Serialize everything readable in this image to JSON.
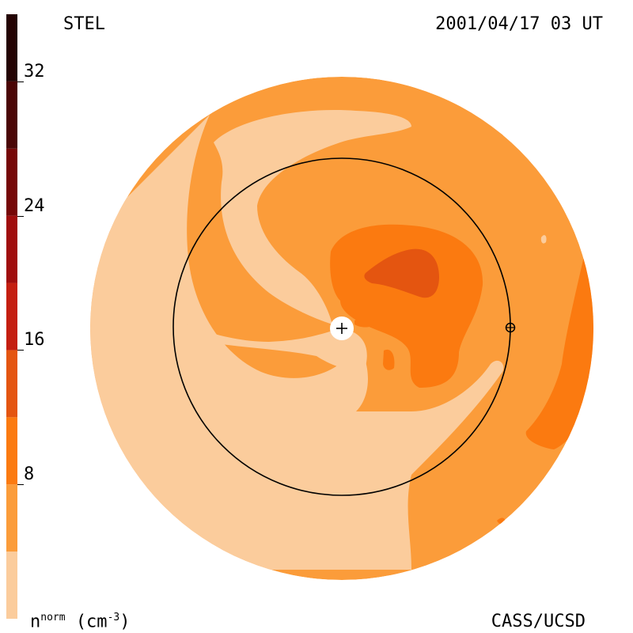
{
  "header": {
    "left_label": "STEL",
    "right_label": "2001/04/17 03 UT",
    "credit": "CASS/UCSD"
  },
  "colorbar": {
    "unit_base": "n",
    "unit_sup": "norm",
    "unit_rest": "(cm",
    "unit_exp": "-3",
    "unit_close": ")",
    "min": 0,
    "max": 36,
    "ticks": [
      "8",
      "16",
      "24",
      "32"
    ],
    "tick_values": [
      8,
      16,
      24,
      32
    ],
    "levels": [
      {
        "from": 0,
        "to": 4,
        "color": "#fbcc9c"
      },
      {
        "from": 4,
        "to": 8,
        "color": "#fb9c3a"
      },
      {
        "from": 8,
        "to": 12,
        "color": "#fb7a10"
      },
      {
        "from": 12,
        "to": 16,
        "color": "#e45510"
      },
      {
        "from": 16,
        "to": 20,
        "color": "#c41e10"
      },
      {
        "from": 20,
        "to": 24,
        "color": "#a00d0d"
      },
      {
        "from": 24,
        "to": 28,
        "color": "#760707"
      },
      {
        "from": 28,
        "to": 32,
        "color": "#4a0505"
      },
      {
        "from": 32,
        "to": 36,
        "color": "#240303"
      }
    ]
  },
  "chart_data": {
    "type": "heatmap",
    "description_units": "normalized solar wind density n (cm^-3)",
    "features": [
      {
        "region": "outer disk background",
        "level": "4-8"
      },
      {
        "region": "spiral arms and inner low-density lanes",
        "level": "0-4"
      },
      {
        "region": "dense structure right of Sun",
        "level": "8-12"
      },
      {
        "region": "core of dense structure",
        "level": "12-16"
      },
      {
        "region": "eastern limb band",
        "level": "8-12"
      }
    ],
    "markers": [
      "sun",
      "earth"
    ],
    "earth_orbit_circle": true
  },
  "colors": {
    "background": "#ffffff",
    "low": "#fbcc9c",
    "mid": "#fb9c3a",
    "high": "#fb7a10",
    "peak": "#e45510"
  }
}
